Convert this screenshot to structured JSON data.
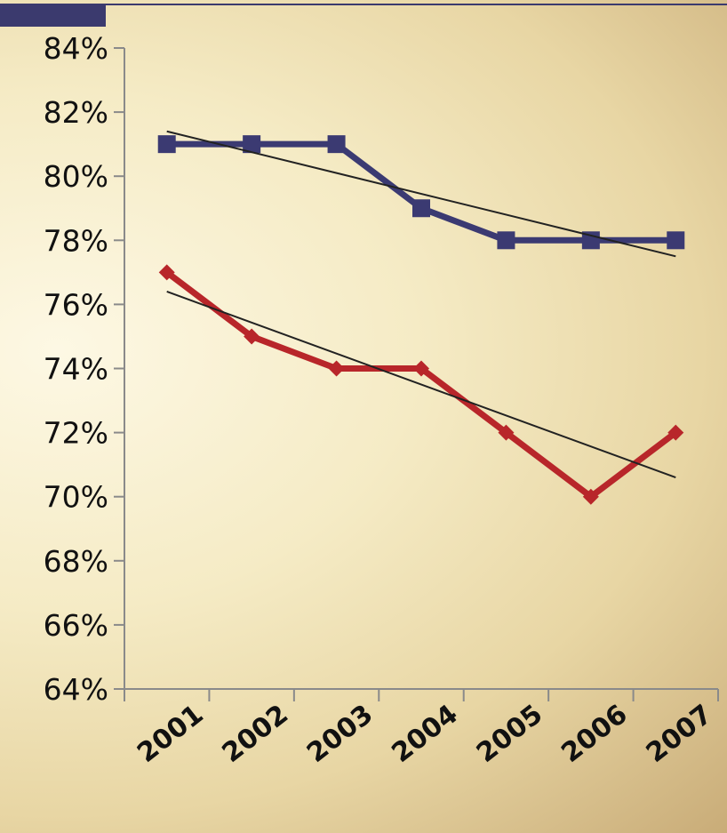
{
  "chart_data": {
    "type": "line",
    "title": "",
    "xlabel": "",
    "ylabel": "",
    "categories": [
      "2001",
      "2002",
      "2003",
      "2004",
      "2005",
      "2006",
      "2007"
    ],
    "ylim": [
      64,
      84
    ],
    "yticks": [
      64,
      66,
      68,
      70,
      72,
      74,
      76,
      78,
      80,
      82,
      84
    ],
    "y_tick_suffix": "%",
    "grid": false,
    "legend": "none",
    "series": [
      {
        "values": [
          81,
          81,
          81,
          79,
          78,
          78,
          78
        ],
        "color": "#3b3a72",
        "marker": "square",
        "trendline": [
          81.4,
          77.5
        ]
      },
      {
        "values": [
          77,
          75,
          74,
          74,
          72,
          70,
          72
        ],
        "color": "#b8262a",
        "marker": "diamond",
        "trendline": [
          76.4,
          70.6
        ]
      }
    ]
  },
  "colors": {
    "header_bar": "#3b3a6e",
    "axis": "#8a8a8a",
    "trendline": "#222222"
  }
}
